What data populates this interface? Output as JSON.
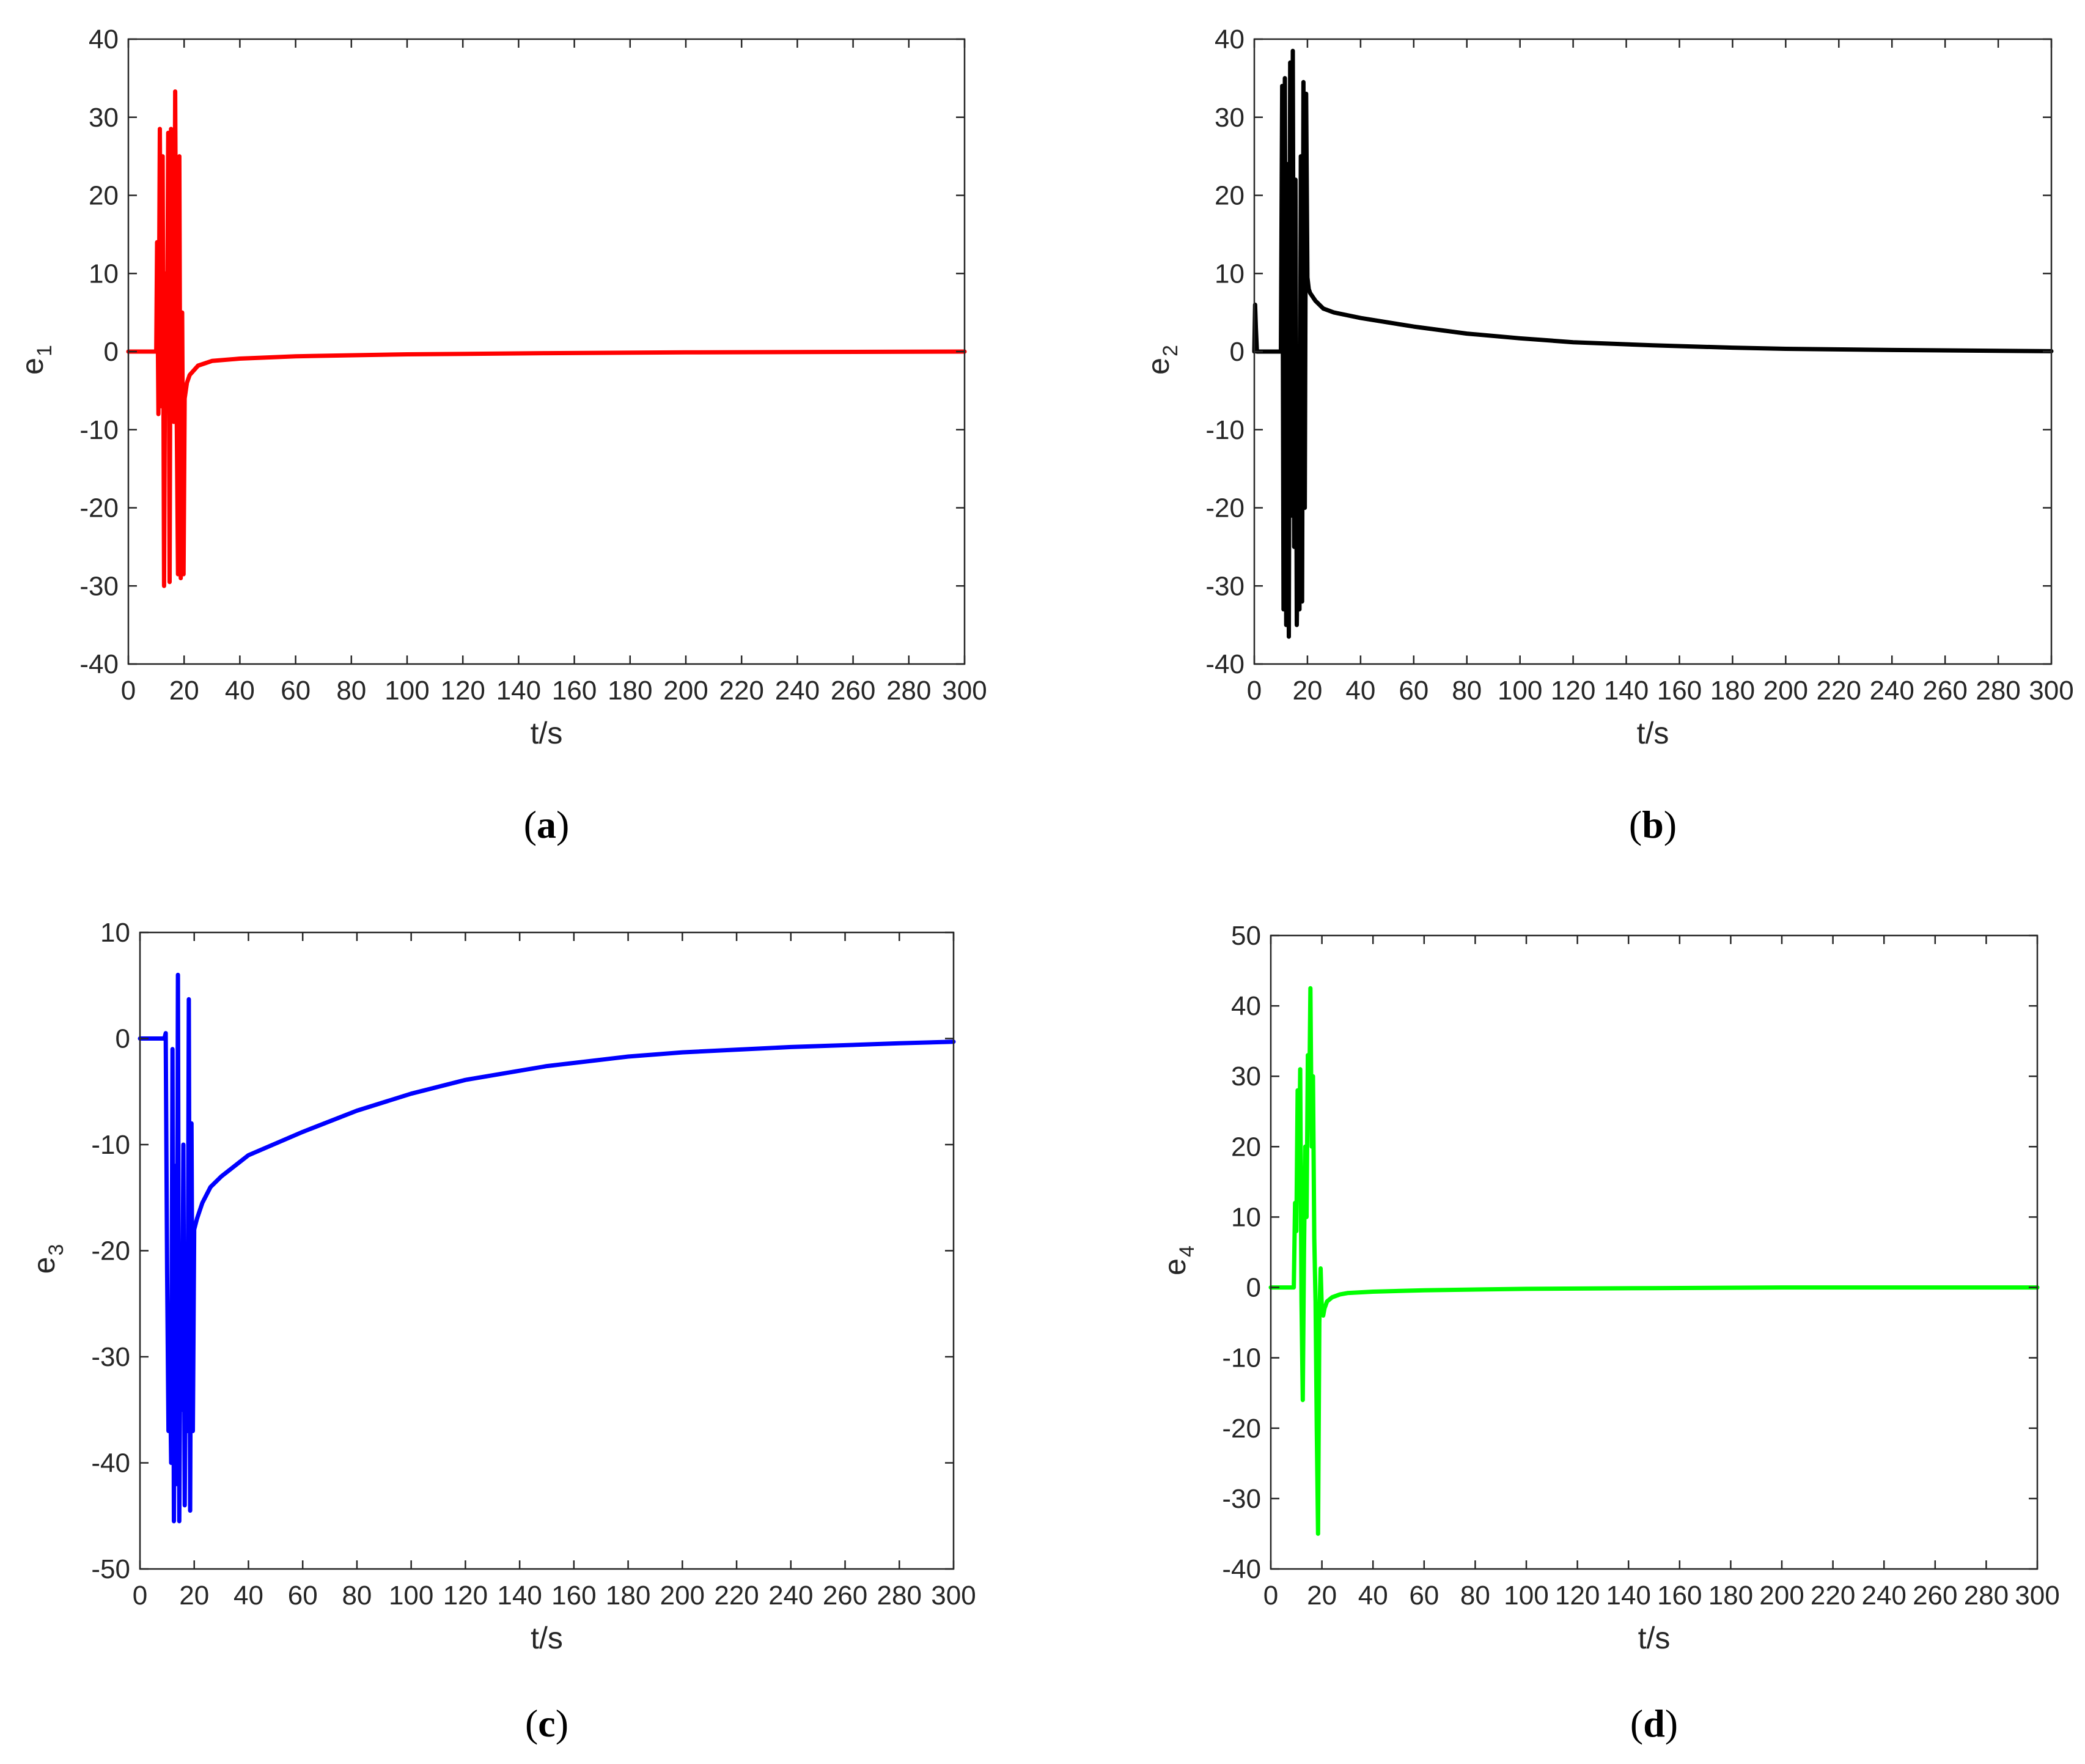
{
  "chart_data": [
    {
      "type": "line",
      "panel": "a",
      "caption": "a",
      "ylabel": "e",
      "ylabel_sub": "1",
      "xlabel": "t/s",
      "xlim": [
        0,
        300
      ],
      "ylim": [
        -40,
        40
      ],
      "xticks": [
        "0",
        "20",
        "40",
        "60",
        "80",
        "100",
        "120",
        "140",
        "160",
        "180",
        "200",
        "220",
        "240",
        "260",
        "280",
        "300"
      ],
      "yticks": [
        "-40",
        "-30",
        "-20",
        "-10",
        "0",
        "10",
        "20",
        "30",
        "40"
      ],
      "color": "#ff0000",
      "series": [
        {
          "name": "e1",
          "x": [
            0,
            10,
            10.3,
            10.8,
            11.3,
            11.8,
            12.3,
            12.8,
            13.3,
            13.8,
            14.3,
            14.8,
            15.3,
            15.8,
            16.3,
            16.8,
            17.3,
            17.8,
            18.3,
            18.8,
            19.3,
            19.8,
            20.2,
            21,
            22,
            25,
            30,
            40,
            60,
            100,
            150,
            200,
            250,
            300
          ],
          "y": [
            0,
            0,
            14,
            -8,
            28.5,
            -7,
            25,
            -30,
            10,
            -6,
            28,
            -29.5,
            28.5,
            -4,
            -9,
            33.3,
            -6,
            -28.5,
            25,
            -29,
            5,
            -28.5,
            -6,
            -4,
            -3,
            -1.8,
            -1.2,
            -0.9,
            -0.6,
            -0.35,
            -0.2,
            -0.1,
            -0.05,
            0
          ]
        }
      ]
    },
    {
      "type": "line",
      "panel": "b",
      "caption": "b",
      "ylabel": "e",
      "ylabel_sub": "2",
      "xlabel": "t/s",
      "xlim": [
        0,
        300
      ],
      "ylim": [
        -40,
        40
      ],
      "xticks": [
        "0",
        "20",
        "40",
        "60",
        "80",
        "100",
        "120",
        "140",
        "160",
        "180",
        "200",
        "220",
        "240",
        "260",
        "280",
        "300"
      ],
      "yticks": [
        "-40",
        "-30",
        "-20",
        "-10",
        "0",
        "10",
        "20",
        "30",
        "40"
      ],
      "color": "#000000",
      "series": [
        {
          "name": "e2",
          "x": [
            0,
            0.3,
            0.6,
            1,
            5,
            10,
            10.5,
            11,
            11.5,
            12,
            12.5,
            13,
            13.5,
            14,
            14.5,
            15,
            15.5,
            16,
            16.5,
            17,
            17.5,
            18,
            18.5,
            19,
            19.5,
            20,
            20.5,
            21,
            23,
            26,
            30,
            40,
            60,
            80,
            100,
            120,
            150,
            180,
            200,
            240,
            280,
            300
          ],
          "y": [
            0,
            6,
            3,
            0,
            0,
            0,
            34,
            -33,
            35,
            -35,
            24,
            -36.5,
            37,
            -21,
            38.5,
            -25,
            22,
            -35,
            -20,
            -33,
            25,
            -32,
            34.5,
            -20,
            33,
            9.5,
            8,
            7.5,
            6.5,
            5.5,
            5,
            4.3,
            3.2,
            2.3,
            1.7,
            1.2,
            0.8,
            0.5,
            0.35,
            0.2,
            0.1,
            0.05
          ]
        }
      ]
    },
    {
      "type": "line",
      "panel": "c",
      "caption": "c",
      "ylabel": "e",
      "ylabel_sub": "3",
      "xlabel": "t/s",
      "xlim": [
        0,
        300
      ],
      "ylim": [
        -50,
        10
      ],
      "xticks": [
        "0",
        "20",
        "40",
        "60",
        "80",
        "100",
        "120",
        "140",
        "160",
        "180",
        "200",
        "220",
        "240",
        "260",
        "280",
        "300"
      ],
      "yticks": [
        "-50",
        "-40",
        "-30",
        "-20",
        "-10",
        "0",
        "10"
      ],
      "color": "#0000ff",
      "series": [
        {
          "name": "e3",
          "x": [
            0,
            9,
            9.5,
            10,
            10.5,
            11,
            11.5,
            12,
            12.5,
            13,
            13.5,
            14,
            14.5,
            15,
            15.5,
            16,
            16.5,
            17,
            17.5,
            18,
            18.5,
            19,
            19.5,
            20,
            21,
            23,
            26,
            30,
            40,
            60,
            80,
            100,
            120,
            150,
            180,
            200,
            240,
            280,
            300
          ],
          "y": [
            0,
            0,
            0.5,
            -22,
            -37,
            -30,
            -40,
            -1,
            -45.5,
            -12,
            -42,
            6,
            -45.5,
            -23,
            -35,
            -10,
            -44,
            -25,
            -37,
            3.7,
            -44.5,
            -8,
            -37,
            -18,
            -17,
            -15.5,
            -14,
            -13,
            -11,
            -8.8,
            -6.8,
            -5.2,
            -3.9,
            -2.6,
            -1.7,
            -1.3,
            -0.8,
            -0.45,
            -0.3
          ]
        }
      ]
    },
    {
      "type": "line",
      "panel": "d",
      "caption": "d",
      "ylabel": "e",
      "ylabel_sub": "4",
      "xlabel": "t/s",
      "xlim": [
        0,
        300
      ],
      "ylim": [
        -40,
        50
      ],
      "xticks": [
        "0",
        "20",
        "40",
        "60",
        "80",
        "100",
        "120",
        "140",
        "160",
        "180",
        "200",
        "220",
        "240",
        "260",
        "280",
        "300"
      ],
      "yticks": [
        "-40",
        "-30",
        "-20",
        "-10",
        "0",
        "10",
        "20",
        "30",
        "40",
        "50"
      ],
      "color": "#00ff00",
      "series": [
        {
          "name": "e4",
          "x": [
            0,
            9,
            9.5,
            10,
            10.5,
            11,
            11.5,
            12,
            12.5,
            13,
            13.5,
            14,
            14.5,
            15,
            15.5,
            16,
            16.5,
            17,
            17.5,
            18,
            18.5,
            19,
            19.5,
            20,
            20.5,
            21,
            22,
            24,
            27,
            30,
            40,
            60,
            100,
            150,
            200,
            250,
            300
          ],
          "y": [
            0,
            0,
            12,
            8,
            28,
            15,
            31,
            -2,
            -16,
            5,
            20,
            10,
            33,
            25,
            42.5,
            20,
            30,
            7,
            -2,
            -20,
            -35,
            -5,
            2.7,
            -3.5,
            -4,
            -3,
            -2,
            -1.4,
            -1,
            -0.8,
            -0.6,
            -0.4,
            -0.2,
            -0.1,
            0,
            0,
            0
          ]
        }
      ]
    }
  ]
}
